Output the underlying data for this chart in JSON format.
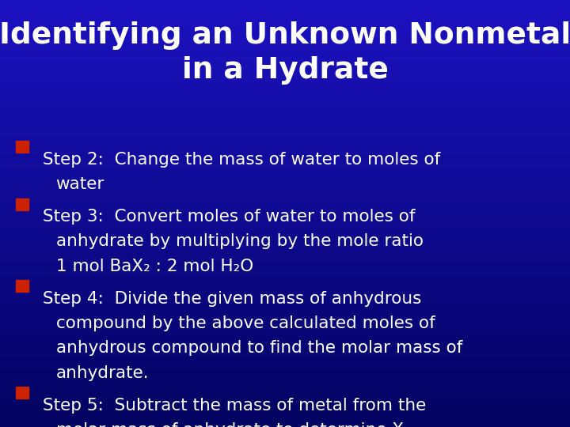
{
  "title_line1": "Identifying an Unknown Nonmetal",
  "title_line2": "in a Hydrate",
  "title_color": "#FFFFFF",
  "title_fontsize": 27,
  "bullet_color": "#CC2200",
  "text_color": "#FFFFFF",
  "bullet_fontsize": 15.5,
  "bullets": [
    {
      "lines": [
        "Step 2:  Change the mass of water to moles of",
        "water"
      ]
    },
    {
      "lines": [
        "Step 3:  Convert moles of water to moles of",
        "anhydrate by multiplying by the mole ratio",
        "1 mol BaX₂ : 2 mol H₂O"
      ]
    },
    {
      "lines": [
        "Step 4:  Divide the given mass of anhydrous",
        "compound by the above calculated moles of",
        "anhydrous compound to find the molar mass of",
        "anhydrate."
      ]
    },
    {
      "lines": [
        "Step 5:  Subtract the mass of metal from the",
        "molar mass of anhydrate to determine X"
      ]
    }
  ]
}
